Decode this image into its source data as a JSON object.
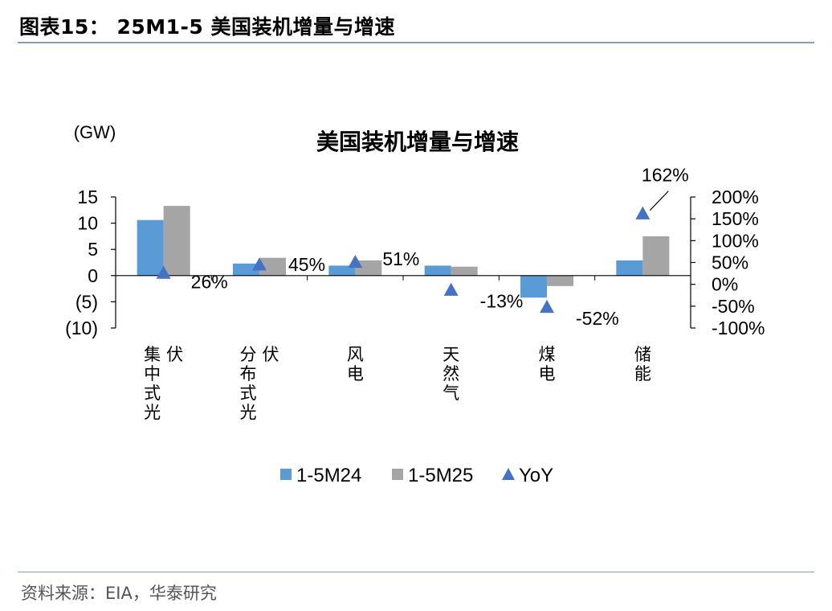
{
  "header": {
    "figure_title": "图表15： 25M1-5 美国装机增量与增速"
  },
  "footer": {
    "source": "资料来源：EIA，华泰研究"
  },
  "chart_data": {
    "type": "bar",
    "title": "美国装机增量与增速",
    "y_unit_label": "(GW)",
    "categories": [
      "集中式光伏",
      "分布式光伏",
      "风电",
      "天然气",
      "煤电",
      "储能"
    ],
    "series": [
      {
        "name": "1-5M24",
        "type": "bar",
        "axis": "left",
        "color": "#5b9bd5",
        "values": [
          10.6,
          2.3,
          1.9,
          1.9,
          -4.2,
          2.9
        ]
      },
      {
        "name": "1-5M25",
        "type": "bar",
        "axis": "left",
        "color": "#a5a5a5",
        "values": [
          13.3,
          3.4,
          2.9,
          1.7,
          -2.0,
          7.5
        ]
      },
      {
        "name": "YoY",
        "type": "scatter",
        "marker": "triangle",
        "axis": "right",
        "color": "#4472c4",
        "values": [
          26,
          45,
          51,
          -13,
          -52,
          162
        ],
        "labels": [
          "26%",
          "45%",
          "51%",
          "-13%",
          "-52%",
          "162%"
        ]
      }
    ],
    "left_axis": {
      "min": -10,
      "max": 15,
      "ticks": [
        15,
        10,
        5,
        0,
        -5,
        -10
      ],
      "tick_labels": [
        "15",
        "10",
        "5",
        "0",
        "(5)",
        "(10)"
      ]
    },
    "right_axis": {
      "min": -100,
      "max": 200,
      "ticks": [
        200,
        150,
        100,
        50,
        0,
        -50,
        -100
      ],
      "tick_labels": [
        "200%",
        "150%",
        "100%",
        "50%",
        "0%",
        "-50%",
        "-100%"
      ]
    },
    "legend": {
      "position": "bottom",
      "items": [
        "1-5M24",
        "1-5M25",
        "YoY"
      ]
    },
    "grid": false
  }
}
